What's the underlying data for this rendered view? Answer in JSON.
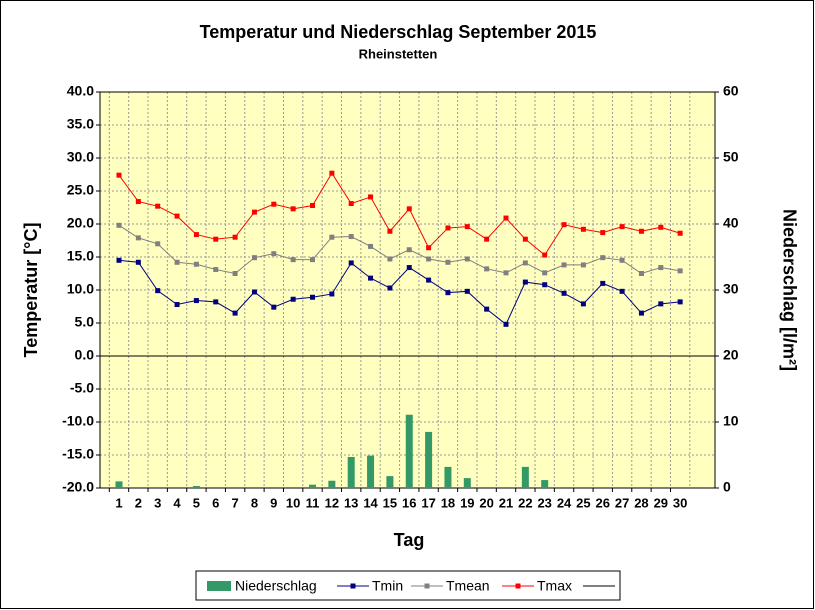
{
  "chart_data": {
    "type": "bar-line",
    "title": "Temperatur und Niederschlag  September 2015",
    "subtitle": "Rheinstetten",
    "xlabel": "Tag",
    "ylabel": "Temperatur [°C]",
    "y2label": "Niederschlag [l/m²]",
    "categories": [
      "1",
      "2",
      "3",
      "4",
      "5",
      "6",
      "7",
      "8",
      "9",
      "10",
      "11",
      "12",
      "13",
      "14",
      "15",
      "16",
      "17",
      "18",
      "19",
      "20",
      "21",
      "22",
      "23",
      "24",
      "25",
      "26",
      "27",
      "28",
      "29",
      "30"
    ],
    "series": [
      {
        "name": "Niederschlag",
        "type": "bar",
        "axis": "y2",
        "color": "#339966",
        "values": [
          1.0,
          0,
          0,
          0,
          0.3,
          0,
          0,
          0,
          0,
          0,
          0.5,
          1.1,
          4.7,
          4.9,
          1.8,
          11.1,
          8.5,
          3.2,
          1.5,
          0,
          0,
          3.2,
          1.2,
          0,
          0,
          0,
          0,
          0,
          0,
          0
        ]
      },
      {
        "name": "Tmin",
        "type": "line",
        "color": "#000080",
        "values": [
          14.5,
          14.2,
          9.9,
          7.8,
          8.4,
          8.2,
          6.5,
          9.7,
          7.4,
          8.6,
          8.9,
          9.4,
          14.1,
          11.8,
          10.3,
          13.4,
          11.5,
          9.6,
          9.8,
          7.1,
          4.8,
          11.2,
          10.8,
          9.5,
          7.9,
          11.0,
          9.8,
          6.5,
          7.9,
          8.2
        ]
      },
      {
        "name": "Tmean",
        "type": "line",
        "color": "#808080",
        "values": [
          19.8,
          17.9,
          17.0,
          14.2,
          13.9,
          13.1,
          12.5,
          14.9,
          15.5,
          14.6,
          14.6,
          18.0,
          18.1,
          16.6,
          14.7,
          16.1,
          14.7,
          14.2,
          14.7,
          13.2,
          12.6,
          14.1,
          12.6,
          13.8,
          13.8,
          14.9,
          14.5,
          12.5,
          13.4,
          12.9
        ]
      },
      {
        "name": "Tmax",
        "type": "line",
        "color": "#ff0000",
        "values": [
          27.4,
          23.4,
          22.7,
          21.2,
          18.4,
          17.7,
          18.0,
          21.8,
          23.0,
          22.3,
          22.8,
          27.7,
          23.1,
          24.1,
          18.9,
          22.3,
          16.4,
          19.4,
          19.6,
          17.7,
          20.9,
          17.7,
          15.3,
          19.9,
          19.2,
          18.7,
          19.6,
          18.9,
          19.5,
          18.6
        ]
      }
    ],
    "ylim": [
      -20,
      40
    ],
    "yticks": [
      {
        "value": -20,
        "label": "-20.0"
      },
      {
        "value": -15,
        "label": "-15.0"
      },
      {
        "value": -10,
        "label": "-10.0"
      },
      {
        "value": -5,
        "label": "-5.0"
      },
      {
        "value": 0,
        "label": "0.0"
      },
      {
        "value": 5,
        "label": "5.0"
      },
      {
        "value": 10,
        "label": "10.0"
      },
      {
        "value": 15,
        "label": "15.0"
      },
      {
        "value": 20,
        "label": "20.0"
      },
      {
        "value": 25,
        "label": "25.0"
      },
      {
        "value": 30,
        "label": "30.0"
      },
      {
        "value": 35,
        "label": "35.0"
      },
      {
        "value": 40,
        "label": "40.0"
      }
    ],
    "y2lim": [
      0,
      60
    ],
    "y2ticks": [
      0,
      10,
      20,
      30,
      40,
      50,
      60
    ],
    "grid": true,
    "legend": "bottom"
  }
}
